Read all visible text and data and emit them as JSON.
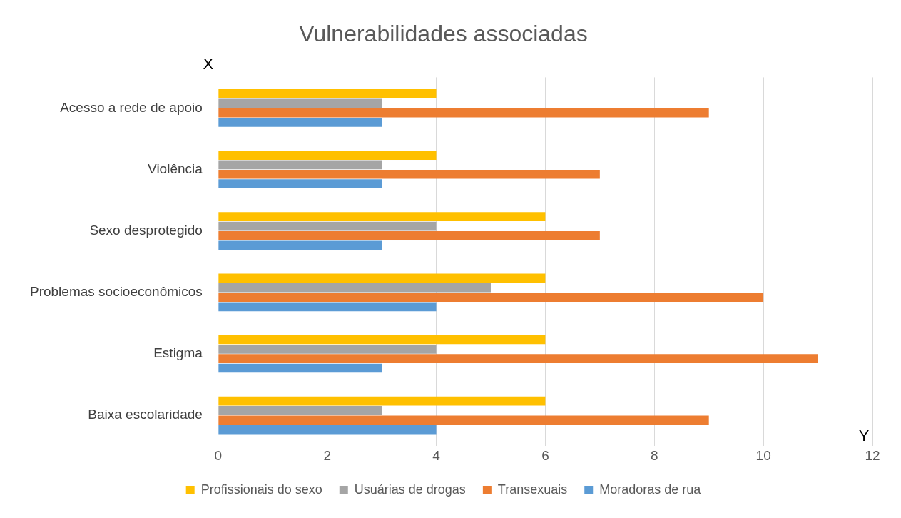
{
  "chart_data": {
    "type": "bar",
    "orientation": "horizontal",
    "title": "Vulnerabilidades associadas",
    "categories": [
      "Acesso a rede de apoio",
      "Violência",
      "Sexo desprotegido",
      "Problemas socioeconômicos",
      "Estigma",
      "Baixa escolaridade"
    ],
    "series": [
      {
        "name": "Profissionais do sexo",
        "color": "#ffc000",
        "values": [
          4,
          4,
          6,
          6,
          6,
          6
        ]
      },
      {
        "name": "Usuárias de drogas",
        "color": "#a5a5a5",
        "values": [
          3,
          3,
          4,
          5,
          4,
          3
        ]
      },
      {
        "name": "Transexuais",
        "color": "#ed7d31",
        "values": [
          9,
          7,
          7,
          10,
          11,
          9
        ]
      },
      {
        "name": "Moradoras de rua",
        "color": "#5b9bd5",
        "values": [
          3,
          3,
          3,
          4,
          3,
          4
        ]
      }
    ],
    "xlim": [
      0,
      12
    ],
    "xticks": [
      0,
      2,
      4,
      6,
      8,
      10,
      12
    ],
    "grid": "x",
    "legend": "bottom",
    "annotations": [
      "X",
      "Y"
    ]
  }
}
